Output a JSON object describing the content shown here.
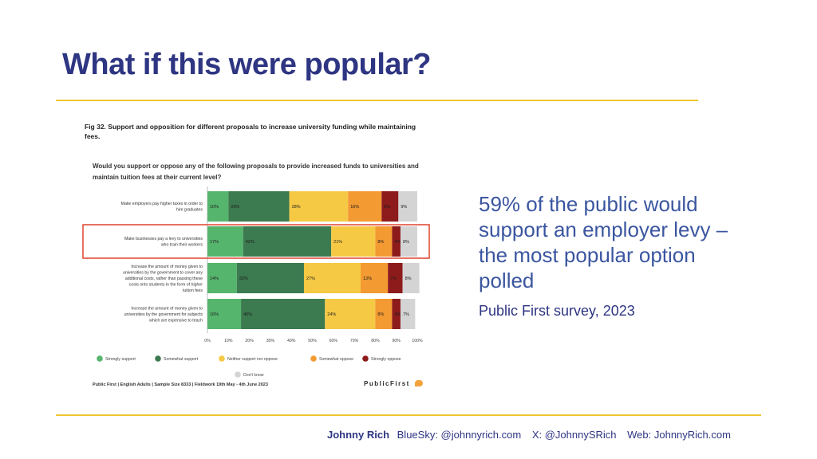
{
  "slide": {
    "title": "What if this were popular?",
    "callout": "59% of the public would support an employer levy – the most popular option polled",
    "source": "Public First survey, 2023"
  },
  "footer": {
    "name": "Johnny Rich",
    "bluesky": "BlueSky: @johnnyrich.com",
    "x": "X: @JohnnySRich",
    "web": "Web: JohnnyRich.com"
  },
  "figure": {
    "title": "Fig 32. Support and opposition for different proposals to increase university funding while maintaining fees.",
    "question": "Would you support or oppose any of the following proposals to provide increased funds to universities and maintain tuition fees at their current level?",
    "footnote": "Public First | English Adults | Sample Size 8333 | Fieldwork 19th May - 4th June 2023",
    "brand": "PublicFirst"
  },
  "chart_data": {
    "type": "bar",
    "orientation": "horizontal",
    "stacked": true,
    "categories": [
      "Make employers pay higher taxes in order to hire graduates",
      "Make businesses pay a levy to universities who train their workers",
      "Increase the amount of money given to universities by the government to cover any additional costs, rather than passing these costs onto students in the form of higher tuition fees",
      "Increase the amount of money given to universities by the government for subjects which are expensive to teach"
    ],
    "series": [
      {
        "name": "Strongly support",
        "color": "#55b56d",
        "values": [
          10,
          17,
          14,
          16
        ],
        "labels": [
          "10%",
          "17%",
          "14%",
          "16%"
        ]
      },
      {
        "name": "Somewhat support",
        "color": "#3c7a4f",
        "values": [
          29,
          42,
          32,
          40
        ],
        "labels": [
          "29%",
          "42%",
          "32%",
          "40%"
        ]
      },
      {
        "name": "Neither support nor oppose",
        "color": "#f6c945",
        "values": [
          28,
          21,
          27,
          24
        ],
        "labels": [
          "28%",
          "21%",
          "27%",
          "24%"
        ]
      },
      {
        "name": "Somewhat oppose",
        "color": "#f39a32",
        "values": [
          16,
          8,
          13,
          8
        ],
        "labels": [
          "16%",
          "8%",
          "13%",
          "8%"
        ]
      },
      {
        "name": "Strongly oppose",
        "color": "#8e1b1b",
        "values": [
          8,
          4,
          7,
          4
        ],
        "labels": [
          "8%",
          "4%",
          "7%",
          "4%"
        ]
      },
      {
        "name": "Don't know",
        "color": "#d4d4d4",
        "values": [
          9,
          8,
          8,
          7
        ],
        "labels": [
          "9%",
          "8%",
          "8%",
          "7%"
        ]
      }
    ],
    "xticks": [
      "0%",
      "10%",
      "20%",
      "30%",
      "40%",
      "50%",
      "60%",
      "70%",
      "80%",
      "90%",
      "100%"
    ],
    "xlim": [
      0,
      100
    ],
    "highlighted_category": 1,
    "highlight_color": "#e0442f",
    "legend_position": "bottom"
  }
}
